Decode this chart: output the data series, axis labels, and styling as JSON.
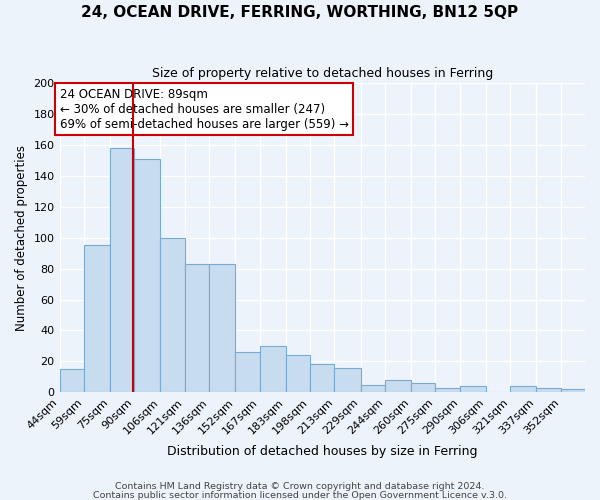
{
  "title": "24, OCEAN DRIVE, FERRING, WORTHING, BN12 5QP",
  "subtitle": "Size of property relative to detached houses in Ferring",
  "xlabel": "Distribution of detached houses by size in Ferring",
  "ylabel": "Number of detached properties",
  "bar_color": "#c8dcf0",
  "bar_edge_color": "#7aaad0",
  "bg_color": "#edf3fb",
  "grid_color": "#ffffff",
  "annotation_box_color": "#ffffff",
  "annotation_box_edge": "#cc0000",
  "vline_color": "#cc0000",
  "vline_x": 89,
  "categories": [
    "44sqm",
    "59sqm",
    "75sqm",
    "90sqm",
    "106sqm",
    "121sqm",
    "136sqm",
    "152sqm",
    "167sqm",
    "183sqm",
    "198sqm",
    "213sqm",
    "229sqm",
    "244sqm",
    "260sqm",
    "275sqm",
    "290sqm",
    "306sqm",
    "321sqm",
    "337sqm",
    "352sqm"
  ],
  "bin_edges": [
    44,
    59,
    75,
    90,
    106,
    121,
    136,
    152,
    167,
    183,
    198,
    213,
    229,
    244,
    260,
    275,
    290,
    306,
    321,
    337,
    352,
    367
  ],
  "values": [
    15,
    95,
    158,
    151,
    100,
    83,
    83,
    26,
    30,
    24,
    18,
    16,
    5,
    8,
    6,
    3,
    4,
    0,
    4,
    3,
    2
  ],
  "ylim": [
    0,
    200
  ],
  "yticks": [
    0,
    20,
    40,
    60,
    80,
    100,
    120,
    140,
    160,
    180,
    200
  ],
  "annotation_title": "24 OCEAN DRIVE: 89sqm",
  "annotation_line1": "← 30% of detached houses are smaller (247)",
  "annotation_line2": "69% of semi-detached houses are larger (559) →",
  "footer1": "Contains HM Land Registry data © Crown copyright and database right 2024.",
  "footer2": "Contains public sector information licensed under the Open Government Licence v.3.0."
}
